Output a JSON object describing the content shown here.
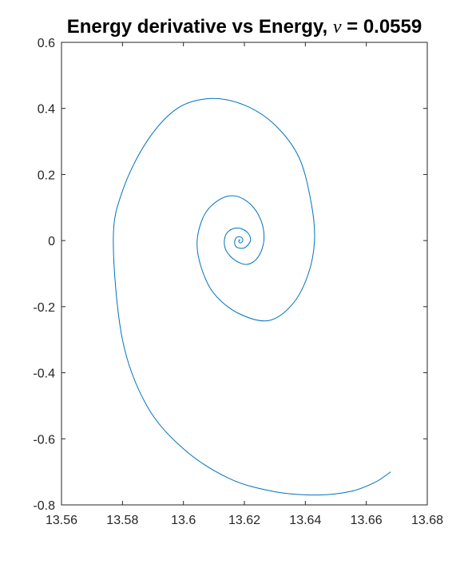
{
  "chart_data": {
    "type": "line",
    "title": "Energy derivative vs Energy, ν = 0.0559",
    "title_parts": {
      "main": "Energy derivative vs Energy, ",
      "symbol": "ν",
      "tail": " = 0.0559"
    },
    "xlabel": "",
    "ylabel": "",
    "xlim": [
      13.56,
      13.68
    ],
    "ylim": [
      -0.8,
      0.6
    ],
    "xticks": [
      "13.56",
      "13.58",
      "13.6",
      "13.62",
      "13.64",
      "13.66",
      "13.68"
    ],
    "yticks": [
      "0.6",
      "0.4",
      "0.2",
      "0",
      "-0.2",
      "-0.4",
      "-0.6",
      "-0.8"
    ],
    "grid": false,
    "colors": {
      "line": "#0072bd",
      "axes": "#262626"
    },
    "series": [
      {
        "points": [
          {
            "x": 13.668,
            "y": -0.7
          },
          {
            "x": 13.663,
            "y": -0.731
          },
          {
            "x": 13.655,
            "y": -0.759
          },
          {
            "x": 13.644,
            "y": -0.77
          },
          {
            "x": 13.63,
            "y": -0.76
          },
          {
            "x": 13.615,
            "y": -0.72
          },
          {
            "x": 13.6,
            "y": -0.63
          },
          {
            "x": 13.588,
            "y": -0.5
          },
          {
            "x": 13.58,
            "y": -0.3
          },
          {
            "x": 13.577,
            "y": 0.0
          },
          {
            "x": 13.58,
            "y": 0.15
          },
          {
            "x": 13.588,
            "y": 0.3
          },
          {
            "x": 13.598,
            "y": 0.4
          },
          {
            "x": 13.609,
            "y": 0.43
          },
          {
            "x": 13.62,
            "y": 0.41
          },
          {
            "x": 13.63,
            "y": 0.35
          },
          {
            "x": 13.638,
            "y": 0.25
          },
          {
            "x": 13.642,
            "y": 0.11
          },
          {
            "x": 13.643,
            "y": 0.0
          },
          {
            "x": 13.641,
            "y": -0.1
          },
          {
            "x": 13.636,
            "y": -0.19
          },
          {
            "x": 13.628,
            "y": -0.242
          },
          {
            "x": 13.618,
            "y": -0.22
          },
          {
            "x": 13.61,
            "y": -0.16
          },
          {
            "x": 13.6058,
            "y": -0.08
          },
          {
            "x": 13.6045,
            "y": 0.0
          },
          {
            "x": 13.607,
            "y": 0.08
          },
          {
            "x": 13.612,
            "y": 0.125
          },
          {
            "x": 13.617,
            "y": 0.135
          },
          {
            "x": 13.622,
            "y": 0.11
          },
          {
            "x": 13.6255,
            "y": 0.06
          },
          {
            "x": 13.6264,
            "y": 0.0
          },
          {
            "x": 13.6245,
            "y": -0.05
          },
          {
            "x": 13.621,
            "y": -0.072
          },
          {
            "x": 13.617,
            "y": -0.06
          },
          {
            "x": 13.614,
            "y": -0.03
          },
          {
            "x": 13.6135,
            "y": 0.005
          },
          {
            "x": 13.615,
            "y": 0.03
          },
          {
            "x": 13.618,
            "y": 0.038
          },
          {
            "x": 13.621,
            "y": 0.025
          },
          {
            "x": 13.622,
            "y": 0.0
          },
          {
            "x": 13.62,
            "y": -0.022
          },
          {
            "x": 13.6175,
            "y": -0.02
          },
          {
            "x": 13.6168,
            "y": -0.005
          },
          {
            "x": 13.6175,
            "y": 0.01
          },
          {
            "x": 13.619,
            "y": 0.01
          },
          {
            "x": 13.6195,
            "y": 0.0
          },
          {
            "x": 13.6188,
            "y": -0.007
          },
          {
            "x": 13.6182,
            "y": -0.004
          },
          {
            "x": 13.6183,
            "y": 0.002
          },
          {
            "x": 13.6187,
            "y": 0.001
          }
        ]
      }
    ]
  }
}
